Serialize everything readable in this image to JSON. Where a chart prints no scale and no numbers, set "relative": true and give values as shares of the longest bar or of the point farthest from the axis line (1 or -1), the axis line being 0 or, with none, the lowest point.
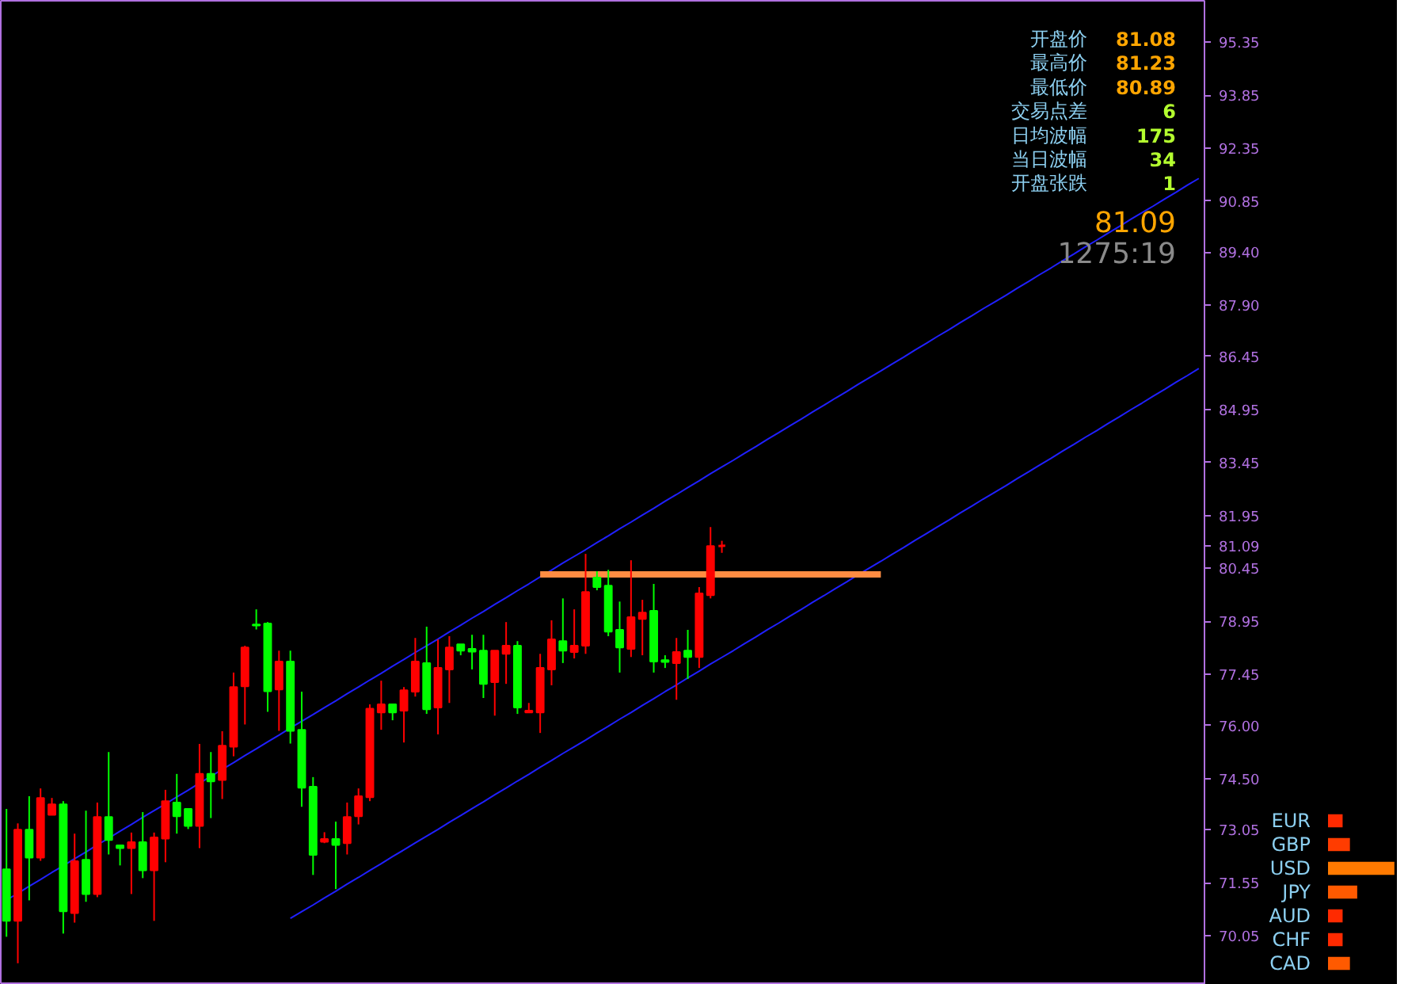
{
  "chart_data": [
    {
      "type": "candlestick",
      "categories": [
        null,
        null,
        null,
        null,
        null,
        null,
        null,
        null,
        null,
        null,
        null,
        null,
        null,
        null,
        null,
        null,
        null,
        null,
        null,
        null,
        null,
        null,
        null,
        null,
        null,
        null,
        null,
        null,
        null,
        null,
        null,
        null,
        null,
        null,
        null,
        null,
        null,
        null,
        null,
        null,
        null,
        null,
        null,
        null,
        null,
        null,
        null,
        null,
        null,
        null,
        null,
        null,
        null,
        null,
        null,
        null,
        null,
        null,
        null,
        null,
        null,
        null,
        null,
        null,
        null,
        null,
        null,
        null,
        null,
        null,
        null,
        null,
        null,
        null,
        null,
        null,
        null,
        null,
        null,
        null,
        null,
        null,
        null,
        null,
        null,
        null,
        null,
        null,
        null,
        null,
        null,
        null,
        null,
        null,
        null,
        null,
        null,
        null,
        null,
        null,
        null,
        null,
        null,
        null,
        null,
        null
      ],
      "ohlc": [
        [
          71.93,
          73.64,
          70.02,
          70.47
        ],
        [
          70.47,
          73.23,
          69.27,
          73.05
        ],
        [
          73.05,
          74.0,
          71.05,
          72.26
        ],
        [
          72.26,
          74.22,
          72.17,
          73.95
        ],
        [
          73.47,
          73.95,
          73.47,
          73.77
        ],
        [
          73.77,
          73.86,
          70.11,
          70.74
        ],
        [
          70.69,
          72.94,
          70.42,
          72.16
        ],
        [
          72.2,
          73.59,
          71.01,
          71.23
        ],
        [
          71.23,
          73.82,
          71.14,
          73.41
        ],
        [
          73.41,
          75.25,
          72.35,
          72.76
        ],
        [
          72.61,
          72.61,
          72.04,
          72.53
        ],
        [
          72.53,
          72.97,
          71.23,
          72.7
        ],
        [
          72.7,
          73.55,
          71.68,
          71.9
        ],
        [
          71.9,
          72.97,
          70.47,
          72.83
        ],
        [
          72.8,
          74.18,
          72.13,
          73.86
        ],
        [
          73.82,
          74.63,
          72.94,
          73.43
        ],
        [
          73.64,
          73.64,
          73.07,
          73.16
        ],
        [
          73.16,
          75.48,
          72.53,
          74.63
        ],
        [
          74.63,
          75.25,
          73.38,
          74.42
        ],
        [
          74.46,
          75.84,
          73.92,
          75.43
        ],
        [
          75.4,
          77.5,
          75.13,
          77.09
        ],
        [
          77.11,
          78.26,
          76.03,
          78.21
        ],
        [
          78.86,
          79.29,
          78.72,
          78.83
        ],
        [
          78.89,
          78.93,
          76.39,
          76.97
        ],
        [
          77.02,
          78.12,
          75.85,
          77.81
        ],
        [
          77.81,
          78.12,
          75.49,
          75.85
        ],
        [
          75.88,
          76.96,
          73.7,
          74.24
        ],
        [
          74.27,
          74.54,
          71.77,
          72.34
        ],
        [
          72.71,
          72.98,
          72.67,
          72.79
        ],
        [
          72.79,
          73.28,
          71.37,
          72.62
        ],
        [
          72.67,
          73.82,
          72.35,
          73.41
        ],
        [
          73.43,
          74.22,
          73.2,
          74.0
        ],
        [
          73.97,
          76.6,
          73.86,
          76.48
        ],
        [
          76.37,
          77.27,
          75.88,
          76.6
        ],
        [
          76.6,
          76.6,
          76.15,
          76.37
        ],
        [
          76.42,
          77.09,
          75.52,
          77.0
        ],
        [
          76.96,
          78.48,
          76.82,
          77.81
        ],
        [
          77.77,
          78.8,
          76.33,
          76.46
        ],
        [
          76.51,
          78.44,
          75.75,
          77.63
        ],
        [
          77.59,
          78.53,
          76.64,
          78.21
        ],
        [
          78.3,
          78.3,
          77.99,
          78.12
        ],
        [
          78.17,
          78.57,
          77.59,
          78.09
        ],
        [
          78.12,
          78.57,
          76.78,
          77.18
        ],
        [
          77.23,
          78.12,
          76.28,
          78.12
        ],
        [
          78.03,
          78.93,
          77.18,
          78.26
        ],
        [
          78.26,
          78.39,
          76.33,
          76.51
        ],
        [
          76.37,
          76.64,
          76.37,
          76.42
        ],
        [
          76.37,
          78.03,
          75.79,
          77.63
        ],
        [
          77.59,
          78.98,
          77.14,
          78.44
        ],
        [
          78.39,
          79.6,
          77.77,
          78.12
        ],
        [
          78.08,
          79.29,
          77.9,
          78.26
        ],
        [
          78.26,
          80.86,
          78.03,
          79.78
        ],
        [
          80.19,
          80.37,
          79.83,
          79.92
        ],
        [
          79.96,
          80.41,
          78.53,
          78.66
        ],
        [
          78.71,
          79.51,
          77.5,
          78.21
        ],
        [
          78.17,
          80.68,
          77.94,
          79.07
        ],
        [
          79.02,
          79.56,
          77.99,
          79.2
        ],
        [
          79.25,
          80.01,
          77.5,
          77.81
        ],
        [
          77.85,
          77.99,
          77.63,
          77.8
        ],
        [
          77.77,
          78.48,
          76.73,
          78.08
        ],
        [
          78.12,
          78.71,
          77.32,
          77.94
        ],
        [
          77.94,
          79.92,
          77.63,
          79.74
        ],
        [
          79.69,
          81.62,
          79.6,
          81.08
        ],
        [
          81.08,
          81.23,
          80.89,
          81.09
        ],
        null,
        null,
        null,
        null,
        null,
        null,
        null,
        null,
        null,
        null,
        null,
        null,
        null,
        null,
        null,
        null,
        null,
        null,
        null,
        null,
        null,
        null,
        null,
        null,
        null,
        null,
        null,
        null,
        null,
        null,
        null,
        null,
        null,
        null,
        null,
        null,
        null,
        null,
        null,
        null,
        null,
        null
      ],
      "series": [
        {
          "type": "line",
          "color": "#2020ff",
          "values": [
            71.06,
            71.25,
            71.45,
            71.64,
            71.84,
            72.03,
            72.23,
            72.42,
            72.62,
            72.81,
            73.01,
            73.2,
            73.4,
            73.59,
            73.78,
            73.98,
            74.17,
            74.37,
            74.56,
            74.76,
            74.95,
            75.15,
            75.34,
            75.54,
            75.73,
            75.93,
            76.12,
            76.31,
            76.51,
            76.7,
            76.9,
            77.09,
            77.29,
            77.48,
            77.68,
            77.87,
            78.07,
            78.26,
            78.45,
            78.65,
            78.84,
            79.04,
            79.23,
            79.43,
            79.62,
            79.82,
            80.01,
            80.21,
            80.4,
            80.6,
            80.79,
            80.98,
            81.18,
            81.37,
            81.57,
            81.76,
            81.96,
            82.15,
            82.35,
            82.54,
            82.74,
            82.93,
            83.13,
            83.32,
            83.51,
            83.71,
            83.9,
            84.1,
            84.29,
            84.49,
            84.68,
            84.88,
            85.07,
            85.27,
            85.46,
            85.66,
            85.85,
            86.04,
            86.24,
            86.43,
            86.63,
            86.82,
            87.02,
            87.21,
            87.41,
            87.6,
            87.8,
            87.99,
            88.18,
            88.38,
            88.57,
            88.77,
            88.96,
            89.16,
            89.35,
            89.55,
            89.74,
            89.94,
            90.13,
            90.33,
            90.52,
            90.71,
            90.91,
            91.1,
            91.3,
            91.49
          ]
        },
        {
          "type": "line",
          "color": "#2020ff",
          "values": [
            null,
            null,
            null,
            null,
            null,
            null,
            null,
            null,
            null,
            null,
            null,
            null,
            null,
            null,
            null,
            null,
            null,
            null,
            null,
            null,
            null,
            null,
            null,
            null,
            null,
            70.54,
            70.73,
            70.92,
            71.12,
            71.31,
            71.51,
            71.7,
            71.9,
            72.09,
            72.29,
            72.48,
            72.68,
            72.87,
            73.06,
            73.26,
            73.45,
            73.65,
            73.84,
            74.04,
            74.23,
            74.43,
            74.62,
            74.82,
            75.01,
            75.21,
            75.4,
            75.59,
            75.79,
            75.98,
            76.18,
            76.37,
            76.57,
            76.76,
            76.96,
            77.15,
            77.35,
            77.54,
            77.74,
            77.93,
            78.12,
            78.32,
            78.51,
            78.71,
            78.9,
            79.1,
            79.29,
            79.49,
            79.68,
            79.88,
            80.07,
            80.27,
            80.46,
            80.65,
            80.85,
            81.04,
            81.24,
            81.43,
            81.63,
            81.82,
            82.02,
            82.21,
            82.41,
            82.6,
            82.79,
            82.99,
            83.18,
            83.38,
            83.57,
            83.77,
            83.96,
            84.16,
            84.35,
            84.55,
            84.74,
            84.94,
            85.13,
            85.33,
            85.52,
            85.72,
            85.91,
            86.11
          ]
        },
        {
          "type": "line",
          "color": "#ff8c42",
          "values": [
            null,
            null,
            null,
            null,
            null,
            null,
            null,
            null,
            null,
            null,
            null,
            null,
            null,
            null,
            null,
            null,
            null,
            null,
            null,
            null,
            null,
            null,
            null,
            null,
            null,
            null,
            null,
            null,
            null,
            null,
            null,
            null,
            null,
            null,
            null,
            null,
            null,
            null,
            null,
            null,
            null,
            null,
            null,
            null,
            null,
            null,
            null,
            80.28,
            80.28,
            80.28,
            80.28,
            80.28,
            80.28,
            80.28,
            80.28,
            80.28,
            80.28,
            80.28,
            80.28,
            80.28,
            80.28,
            80.28,
            80.28,
            80.28,
            80.28,
            80.28,
            80.28,
            80.28,
            80.28,
            80.28,
            80.28,
            80.28,
            80.28,
            80.28,
            80.28,
            80.28,
            80.28,
            80.28,
            null,
            null,
            null,
            null,
            null,
            null,
            null,
            null,
            null,
            null,
            null,
            null,
            null,
            null,
            null,
            null,
            null,
            null,
            null,
            null,
            null,
            null,
            null,
            null,
            null,
            null,
            null,
            null
          ]
        }
      ],
      "ylim": [
        68.66,
        96.52
      ],
      "yticks": [
        95.35,
        93.85,
        92.35,
        90.85,
        {
          "value": 89.4,
          "label": "89.40"
        },
        {
          "value": 87.9,
          "label": "87.90"
        },
        86.45,
        84.95,
        83.45,
        81.95,
        81.09,
        80.45,
        78.95,
        77.45,
        {
          "value": 76,
          "label": "76.00"
        },
        {
          "value": 74.5,
          "label": "74.50"
        },
        73.05,
        71.55,
        70.05
      ],
      "tick_labels": "y",
      "annotations": [
        "开盘价",
        "81.08",
        "最高价",
        "81.23",
        "最低价",
        "80.89",
        "交易点差",
        "6",
        "日均波幅",
        "175",
        "当日波幅",
        "34",
        "开盘张跌",
        "1",
        "81.09",
        "1275:19"
      ]
    },
    {
      "type": "bar",
      "orientation": "horizontal",
      "relative": true,
      "categories": [
        "EUR",
        "GBP",
        "USD",
        "JPY",
        "AUD",
        "CHF",
        "CAD"
      ],
      "values": [
        0.22,
        0.33,
        1,
        0.44,
        0.22,
        0.22,
        0.33
      ],
      "colors": [
        "#ff2a00",
        "#ff3c00",
        "#ff7a00",
        "#ff5a00",
        "#ff2a00",
        "#ff2a00",
        "#ff5a00"
      ]
    }
  ]
}
